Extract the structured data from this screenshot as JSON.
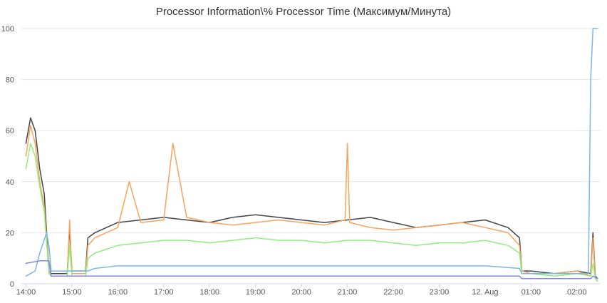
{
  "chart_data": {
    "type": "line",
    "title": "Processor Information\\% Processor Time (Максимум/Минута)",
    "xlabel": "",
    "ylabel": "",
    "ylim": [
      0,
      100
    ],
    "y_ticks": [
      0,
      20,
      40,
      60,
      80,
      100
    ],
    "x_ticks": [
      "14:00",
      "15:00",
      "16:00",
      "17:00",
      "18:00",
      "19:00",
      "20:00",
      "21:00",
      "22:00",
      "23:00",
      "12. Aug",
      "01:00",
      "02:00"
    ],
    "x_tick_hours": [
      0,
      1,
      2,
      3,
      4,
      5,
      6,
      7,
      8,
      9,
      10,
      11,
      12
    ],
    "x_range_hours": [
      -0.1,
      12.5
    ],
    "grid": true,
    "legend": "none",
    "series": [
      {
        "color": "#434348",
        "x": [
          0,
          0.1,
          0.2,
          0.3,
          0.4,
          0.5,
          0.55,
          0.9,
          0.95,
          1.0,
          1.3,
          1.35,
          1.5,
          2.0,
          2.5,
          3.0,
          3.5,
          4.0,
          4.5,
          5.0,
          5.5,
          6.0,
          6.5,
          7.0,
          7.5,
          8.0,
          8.5,
          9.0,
          9.5,
          10.0,
          10.5,
          10.75,
          10.8,
          11.0,
          11.5,
          12.0,
          12.3,
          12.35,
          12.4,
          12.45
        ],
        "y": [
          55,
          65,
          60,
          45,
          35,
          5,
          4,
          4,
          22,
          5,
          5,
          18,
          20,
          24,
          25,
          26,
          25,
          24,
          26,
          27,
          26,
          25,
          24,
          25,
          26,
          24,
          22,
          23,
          24,
          25,
          22,
          18,
          5,
          5,
          4,
          5,
          4,
          20,
          3,
          2
        ]
      },
      {
        "color": "#f7a35c",
        "x": [
          0,
          0.1,
          0.2,
          0.3,
          0.4,
          0.5,
          0.55,
          0.9,
          0.95,
          1.0,
          1.3,
          1.35,
          1.5,
          2.0,
          2.25,
          2.5,
          3.0,
          3.2,
          3.5,
          4.0,
          4.5,
          5.0,
          5.5,
          6.0,
          6.5,
          6.95,
          7.0,
          7.05,
          7.5,
          8.0,
          8.5,
          9.0,
          9.5,
          10.0,
          10.5,
          10.75,
          10.8,
          11.0,
          11.5,
          12.0,
          12.3,
          12.35,
          12.4,
          12.45
        ],
        "y": [
          50,
          62,
          55,
          40,
          30,
          5,
          3,
          3,
          25,
          4,
          4,
          15,
          18,
          22,
          40,
          24,
          25,
          55,
          26,
          24,
          23,
          24,
          25,
          24,
          23,
          25,
          55,
          24,
          22,
          21,
          22,
          23,
          24,
          22,
          20,
          15,
          5,
          4,
          4,
          5,
          3,
          18,
          2,
          1
        ]
      },
      {
        "color": "#90ed7d",
        "x": [
          0,
          0.1,
          0.2,
          0.3,
          0.4,
          0.5,
          0.55,
          0.9,
          0.95,
          1.0,
          1.3,
          1.35,
          1.5,
          2.0,
          2.5,
          3.0,
          3.5,
          4.0,
          4.5,
          5.0,
          5.5,
          6.0,
          6.5,
          7.0,
          7.5,
          8.0,
          8.5,
          9.0,
          9.5,
          10.0,
          10.5,
          10.75,
          10.8,
          11.0,
          11.5,
          12.0,
          12.3,
          12.35,
          12.4,
          12.45
        ],
        "y": [
          45,
          55,
          50,
          38,
          28,
          4,
          3,
          3,
          15,
          3,
          3,
          10,
          12,
          15,
          16,
          17,
          17,
          16,
          17,
          18,
          17,
          17,
          16,
          17,
          17,
          16,
          15,
          16,
          16,
          17,
          15,
          12,
          4,
          4,
          3,
          4,
          3,
          8,
          2,
          1
        ]
      },
      {
        "color": "#7cb5ec",
        "x": [
          0,
          0.2,
          0.3,
          0.45,
          0.5,
          0.55,
          1.0,
          1.35,
          1.5,
          2.0,
          3.0,
          4.0,
          5.0,
          6.0,
          7.0,
          8.0,
          9.0,
          10.0,
          10.75,
          10.8,
          11.0,
          12.0,
          12.25,
          12.3,
          12.35,
          12.45
        ],
        "y": [
          3,
          5,
          12,
          20,
          15,
          5,
          5,
          5,
          6,
          7,
          7,
          7,
          7,
          7,
          7,
          7,
          7,
          7,
          6,
          4,
          4,
          4,
          4,
          80,
          100,
          100
        ]
      },
      {
        "color": "#8085e9",
        "x": [
          0,
          0.3,
          0.5,
          0.55,
          1.0,
          1.35,
          1.5,
          2.0,
          3.0,
          4.0,
          5.0,
          6.0,
          7.0,
          8.0,
          9.0,
          10.0,
          10.75,
          10.8,
          11.0,
          12.0,
          12.3,
          12.35,
          12.45
        ],
        "y": [
          8,
          9,
          9,
          3,
          3,
          3,
          3,
          3,
          3,
          3,
          3,
          3,
          3,
          3,
          3,
          3,
          3,
          2,
          2,
          2,
          2,
          3,
          2
        ]
      }
    ]
  }
}
